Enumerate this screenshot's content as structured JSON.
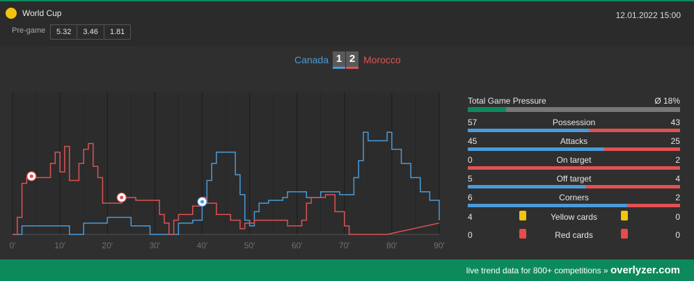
{
  "colors": {
    "home": "#4a9bd8",
    "away": "#e05252",
    "brand": "#0d8a5c",
    "yellow": "#f2c40d",
    "red": "#e84b4b"
  },
  "competition": {
    "name": "World Cup",
    "icon": "yellow-circle-icon"
  },
  "datetime": "12.01.2022 15:00",
  "pregame": {
    "label": "Pre-game",
    "odds": [
      "5.32",
      "3.46",
      "1.81"
    ]
  },
  "match": {
    "home": "Canada",
    "away": "Morocco",
    "home_score": "1",
    "away_score": "2"
  },
  "chart_data": {
    "type": "line",
    "x_ticks": [
      "0'",
      "10'",
      "20'",
      "30'",
      "40'",
      "50'",
      "60'",
      "70'",
      "80'",
      "90'"
    ],
    "xlim": [
      0,
      90
    ],
    "ylim": [
      0,
      100
    ],
    "grid": true,
    "series": [
      {
        "team": "home",
        "points": [
          [
            0,
            0
          ],
          [
            2,
            0
          ],
          [
            2,
            6
          ],
          [
            12,
            6
          ],
          [
            12,
            0
          ],
          [
            15,
            0
          ],
          [
            15,
            8
          ],
          [
            20,
            8
          ],
          [
            20,
            12
          ],
          [
            25,
            12
          ],
          [
            25,
            6
          ],
          [
            29,
            6
          ],
          [
            29,
            0
          ],
          [
            32,
            0
          ],
          [
            35,
            0
          ],
          [
            35,
            8
          ],
          [
            38,
            8
          ],
          [
            38,
            10
          ],
          [
            40,
            10
          ],
          [
            40,
            22
          ],
          [
            41,
            22
          ],
          [
            41,
            38
          ],
          [
            42,
            38
          ],
          [
            42,
            50
          ],
          [
            43,
            50
          ],
          [
            43,
            58
          ],
          [
            46,
            58
          ],
          [
            47,
            58
          ],
          [
            47,
            42
          ],
          [
            48,
            42
          ],
          [
            48,
            28
          ],
          [
            49,
            28
          ],
          [
            49,
            10
          ],
          [
            50,
            10
          ],
          [
            50,
            6
          ],
          [
            51,
            6
          ],
          [
            51,
            16
          ],
          [
            52,
            16
          ],
          [
            52,
            22
          ],
          [
            54,
            22
          ],
          [
            54,
            24
          ],
          [
            57,
            24
          ],
          [
            57,
            26
          ],
          [
            58,
            26
          ],
          [
            58,
            30
          ],
          [
            62,
            30
          ],
          [
            62,
            26
          ],
          [
            65,
            26
          ],
          [
            65,
            30
          ],
          [
            69,
            30
          ],
          [
            69,
            28
          ],
          [
            72,
            28
          ],
          [
            72,
            40
          ],
          [
            73,
            40
          ],
          [
            73,
            52
          ],
          [
            74,
            52
          ],
          [
            74,
            72
          ],
          [
            75,
            72
          ],
          [
            75,
            66
          ],
          [
            79,
            66
          ],
          [
            79,
            72
          ],
          [
            80,
            72
          ],
          [
            80,
            60
          ],
          [
            82,
            60
          ],
          [
            82,
            50
          ],
          [
            84,
            50
          ],
          [
            84,
            40
          ],
          [
            86,
            40
          ],
          [
            86,
            30
          ],
          [
            88,
            30
          ],
          [
            88,
            24
          ],
          [
            90,
            24
          ],
          [
            90,
            10
          ]
        ]
      },
      {
        "team": "away",
        "points": [
          [
            0,
            0
          ],
          [
            1,
            0
          ],
          [
            1,
            12
          ],
          [
            2,
            12
          ],
          [
            2,
            36
          ],
          [
            3,
            36
          ],
          [
            3,
            40
          ],
          [
            8,
            40
          ],
          [
            8,
            50
          ],
          [
            9,
            50
          ],
          [
            9,
            58
          ],
          [
            10,
            58
          ],
          [
            10,
            44
          ],
          [
            11,
            44
          ],
          [
            11,
            62
          ],
          [
            12,
            62
          ],
          [
            12,
            38
          ],
          [
            14,
            38
          ],
          [
            14,
            50
          ],
          [
            15,
            50
          ],
          [
            15,
            60
          ],
          [
            16,
            60
          ],
          [
            16,
            64
          ],
          [
            17,
            64
          ],
          [
            17,
            48
          ],
          [
            18,
            48
          ],
          [
            18,
            40
          ],
          [
            19,
            40
          ],
          [
            19,
            22
          ],
          [
            23,
            22
          ],
          [
            23,
            26
          ],
          [
            26,
            26
          ],
          [
            26,
            24
          ],
          [
            31,
            24
          ],
          [
            31,
            14
          ],
          [
            32,
            14
          ],
          [
            32,
            8
          ],
          [
            33,
            8
          ],
          [
            33,
            0
          ],
          [
            34,
            0
          ],
          [
            34,
            10
          ],
          [
            35,
            10
          ],
          [
            35,
            14
          ],
          [
            38,
            14
          ],
          [
            38,
            20
          ],
          [
            40,
            20
          ],
          [
            40,
            26
          ],
          [
            41,
            26
          ],
          [
            41,
            22
          ],
          [
            43,
            22
          ],
          [
            43,
            14
          ],
          [
            46,
            14
          ],
          [
            46,
            10
          ],
          [
            48,
            10
          ],
          [
            48,
            4
          ],
          [
            49,
            4
          ],
          [
            49,
            8
          ],
          [
            51,
            8
          ],
          [
            51,
            10
          ],
          [
            58,
            10
          ],
          [
            58,
            6
          ],
          [
            61,
            6
          ],
          [
            61,
            10
          ],
          [
            62,
            10
          ],
          [
            62,
            22
          ],
          [
            63,
            22
          ],
          [
            63,
            26
          ],
          [
            66,
            26
          ],
          [
            66,
            28
          ],
          [
            68,
            28
          ],
          [
            68,
            16
          ],
          [
            70,
            16
          ],
          [
            70,
            6
          ],
          [
            71,
            6
          ],
          [
            71,
            0
          ],
          [
            79,
            0
          ],
          [
            90,
            8
          ]
        ]
      }
    ],
    "goals": [
      {
        "team": "away",
        "minute": 4,
        "level": 41
      },
      {
        "team": "away",
        "minute": 23,
        "level": 26
      },
      {
        "team": "home",
        "minute": 40,
        "level": 23
      }
    ]
  },
  "stats": {
    "pressure": {
      "label": "Total Game Pressure",
      "value": "Ø 18%",
      "fraction": 0.18
    },
    "rows": [
      {
        "label": "Possession",
        "home": "57",
        "away": "43",
        "home_n": 57,
        "away_n": 43
      },
      {
        "label": "Attacks",
        "home": "45",
        "away": "25",
        "home_n": 45,
        "away_n": 25
      },
      {
        "label": "On target",
        "home": "0",
        "away": "2",
        "home_n": 0,
        "away_n": 2
      },
      {
        "label": "Off target",
        "home": "5",
        "away": "4",
        "home_n": 5,
        "away_n": 4
      },
      {
        "label": "Corners",
        "home": "6",
        "away": "2",
        "home_n": 6,
        "away_n": 2
      }
    ],
    "cards": [
      {
        "label": "Yellow cards",
        "home": "4",
        "away": "0",
        "color": "#f2c40d",
        "icon": "yellow-card-icon"
      },
      {
        "label": "Red cards",
        "home": "0",
        "away": "0",
        "color": "#e84b4b",
        "icon": "red-card-icon"
      }
    ]
  },
  "footer": {
    "text": "live trend data for 800+ competitions »",
    "brand": "overlyzer.com"
  }
}
